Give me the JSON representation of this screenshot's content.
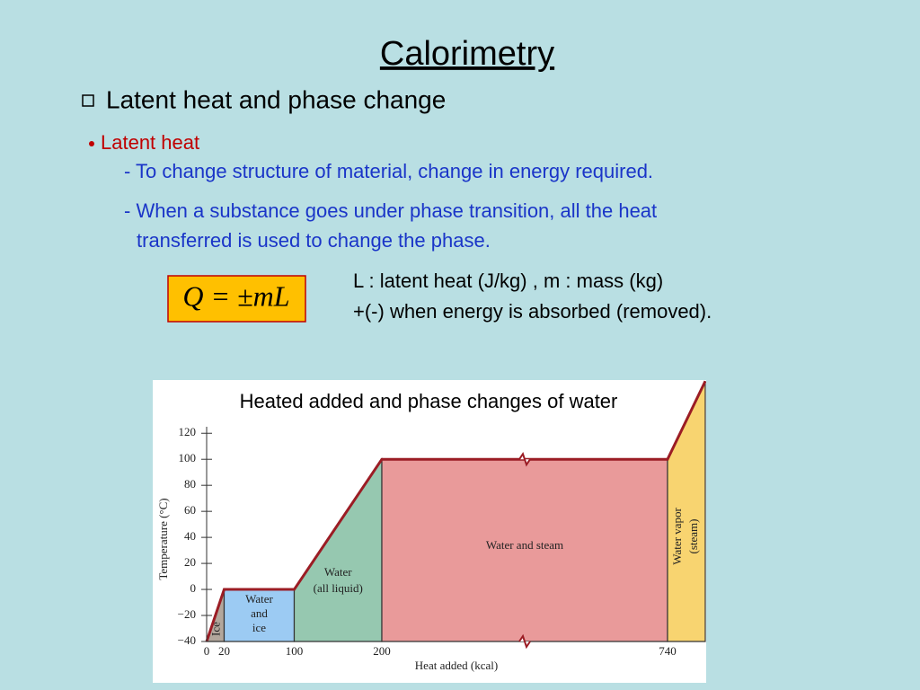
{
  "slide": {
    "title": "Calorimetry",
    "heading": "Latent heat and phase change",
    "bullet": "Latent heat",
    "lines": [
      "- To change structure of material, change in energy required.",
      "- When a substance goes under phase transition, all the heat",
      "transferred is used to change the phase."
    ],
    "formula": "Q = ±mL",
    "notes": [
      "L : latent heat  (J/kg) , m : mass (kg)",
      "+(-) when energy is absorbed (removed)."
    ]
  },
  "chart_data": {
    "type": "line",
    "title": "Heated added and phase changes of water",
    "x_label": "Heat added (kcal)",
    "y_label": "Temperature (°C)",
    "x": [
      0,
      20,
      100,
      200,
      740,
      780
    ],
    "values": [
      -40,
      0,
      0,
      100,
      100,
      160
    ],
    "color": "#9b1c24",
    "xticks": [
      0,
      20,
      100,
      200,
      740
    ],
    "xbreak": [
      200,
      740
    ],
    "ylim": [
      -40,
      125
    ],
    "yticks": [
      {
        "value": -40,
        "label": "−40"
      },
      {
        "value": -20,
        "label": "−20"
      },
      0,
      20,
      40,
      60,
      80,
      100,
      120
    ],
    "regions": [
      {
        "label": [
          "Ice"
        ],
        "color": "#b3a79c"
      },
      {
        "label": [
          "Water",
          "and",
          "ice"
        ],
        "color": "#9ccbf3"
      },
      {
        "label": [
          "Water",
          "(all liquid)"
        ],
        "color": "#96c8b0"
      },
      {
        "label": [
          "Water and steam"
        ],
        "color": "#e99a9a"
      },
      {
        "label": [
          "Water vapor",
          "(steam)"
        ],
        "color": "#f8d470"
      }
    ]
  }
}
